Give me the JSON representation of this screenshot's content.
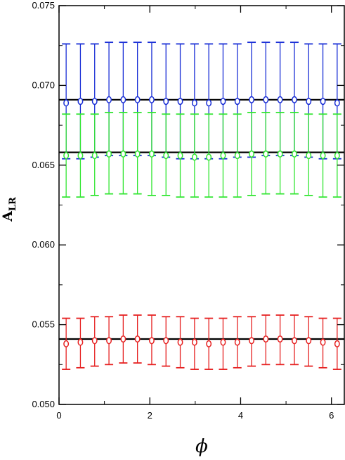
{
  "chart_data": {
    "type": "scatter",
    "title": "",
    "xlabel": "ϕ",
    "ylabel_main": "A",
    "ylabel_sub": "LR",
    "xlim": [
      0,
      6.2832
    ],
    "ylim": [
      0.05,
      0.075
    ],
    "x_ticks": [
      0,
      2,
      4,
      6
    ],
    "x_tick_labels": [
      "0",
      "2",
      "4",
      "6"
    ],
    "y_ticks": [
      0.05,
      0.055,
      0.06,
      0.065,
      0.07,
      0.075
    ],
    "y_tick_labels": [
      "0.050",
      "0.055",
      "0.060",
      "0.065",
      "0.070",
      "0.075"
    ],
    "grid": false,
    "legend": "none",
    "x": [
      0.157,
      0.471,
      0.785,
      1.1,
      1.414,
      1.728,
      2.042,
      2.356,
      2.67,
      2.985,
      3.299,
      3.613,
      3.927,
      4.241,
      4.555,
      4.869,
      5.184,
      5.498,
      5.812,
      6.126
    ],
    "reference_lines": [
      {
        "y": 0.0691,
        "color": "#000000"
      },
      {
        "y": 0.0658,
        "color": "#000000"
      },
      {
        "y": 0.0541,
        "color": "#000000"
      }
    ],
    "series": [
      {
        "color": "#1a2fd6",
        "values": [
          0.0689,
          0.069,
          0.069,
          0.0691,
          0.0691,
          0.0691,
          0.0691,
          0.069,
          0.069,
          0.0689,
          0.0689,
          0.069,
          0.069,
          0.0691,
          0.0691,
          0.0691,
          0.0691,
          0.069,
          0.069,
          0.0689
        ],
        "err_low": [
          0.0654,
          0.0654,
          0.0655,
          0.0656,
          0.0656,
          0.0656,
          0.0656,
          0.0655,
          0.0654,
          0.0654,
          0.0654,
          0.0654,
          0.0655,
          0.0655,
          0.0656,
          0.0656,
          0.0656,
          0.0655,
          0.0654,
          0.0654
        ],
        "err_high": [
          0.0726,
          0.0726,
          0.0726,
          0.0727,
          0.0727,
          0.0727,
          0.0727,
          0.0726,
          0.0726,
          0.0726,
          0.0726,
          0.0726,
          0.0726,
          0.0727,
          0.0727,
          0.0727,
          0.0727,
          0.0726,
          0.0726,
          0.0726
        ]
      },
      {
        "color": "#33e633",
        "values": [
          0.0656,
          0.0656,
          0.0656,
          0.0657,
          0.0657,
          0.0657,
          0.0657,
          0.0656,
          0.0656,
          0.0655,
          0.0655,
          0.0656,
          0.0656,
          0.0657,
          0.0657,
          0.0657,
          0.0657,
          0.0656,
          0.0656,
          0.0656
        ],
        "err_low": [
          0.063,
          0.063,
          0.0631,
          0.0632,
          0.0632,
          0.0632,
          0.0631,
          0.0631,
          0.063,
          0.063,
          0.063,
          0.063,
          0.063,
          0.0631,
          0.0632,
          0.0632,
          0.0632,
          0.0631,
          0.063,
          0.063
        ],
        "err_high": [
          0.0682,
          0.0682,
          0.0682,
          0.0683,
          0.0683,
          0.0683,
          0.0683,
          0.0682,
          0.0682,
          0.0682,
          0.0682,
          0.0682,
          0.0682,
          0.0683,
          0.0683,
          0.0683,
          0.0683,
          0.0682,
          0.0682,
          0.0682
        ]
      },
      {
        "color": "#e62222",
        "values": [
          0.0538,
          0.0539,
          0.054,
          0.054,
          0.0541,
          0.0541,
          0.054,
          0.054,
          0.0539,
          0.0539,
          0.0538,
          0.0539,
          0.0539,
          0.054,
          0.0541,
          0.0541,
          0.054,
          0.054,
          0.0539,
          0.0538
        ],
        "err_low": [
          0.0522,
          0.0523,
          0.0524,
          0.0525,
          0.0526,
          0.0526,
          0.0525,
          0.0524,
          0.0523,
          0.0522,
          0.0522,
          0.0522,
          0.0523,
          0.0524,
          0.0525,
          0.0525,
          0.0525,
          0.0524,
          0.0523,
          0.0522
        ],
        "err_high": [
          0.0554,
          0.0554,
          0.0555,
          0.0555,
          0.0556,
          0.0556,
          0.0556,
          0.0555,
          0.0555,
          0.0554,
          0.0554,
          0.0554,
          0.0555,
          0.0555,
          0.0556,
          0.0556,
          0.0556,
          0.0555,
          0.0554,
          0.0554
        ]
      }
    ]
  }
}
